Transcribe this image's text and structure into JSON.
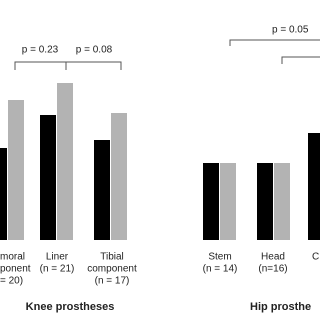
{
  "chart_data": {
    "type": "bar",
    "categories": [
      [
        "moral",
        "ponent",
        "= 20)"
      ],
      [
        "Liner",
        "(n = 21)"
      ],
      [
        "Tibial",
        "component",
        "(n = 17)"
      ],
      [
        "Stem",
        "(n = 14)"
      ],
      [
        "Head",
        "(n=16)"
      ],
      [
        "C"
      ]
    ],
    "series": [
      {
        "color": "#000000",
        "values": [
          92,
          125,
          100,
          77,
          77,
          107
        ]
      },
      {
        "color": "#b3b3b3",
        "values": [
          140,
          157,
          127,
          77,
          77,
          null
        ]
      }
    ],
    "ylim": [
      0,
      160
    ],
    "group_labels": [
      "Knee prostheses",
      "Hip prosthe"
    ],
    "annotations": [
      "p = 0.23",
      "p = 0.08",
      "p = 0.05"
    ]
  }
}
